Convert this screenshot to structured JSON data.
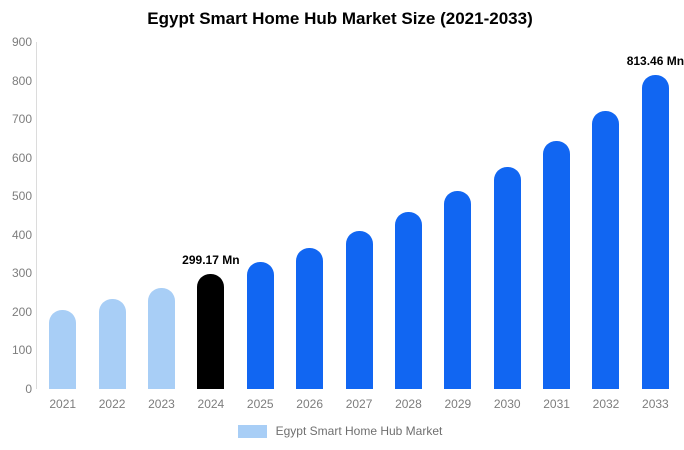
{
  "chart_data": {
    "type": "bar",
    "title": "Egypt Smart Home Hub Market Size (2021-2033)",
    "categories": [
      "2021",
      "2022",
      "2023",
      "2024",
      "2025",
      "2026",
      "2027",
      "2028",
      "2029",
      "2030",
      "2031",
      "2032",
      "2033"
    ],
    "values": [
      205,
      233,
      262,
      299.17,
      330,
      367,
      410,
      458,
      513,
      575,
      643,
      722,
      813.46
    ],
    "value_unit": "Mn",
    "bar_value_labels": [
      "",
      "",
      "",
      "299.17 Mn",
      "",
      "",
      "",
      "",
      "",
      "",
      "",
      "",
      "813.46 Mn"
    ],
    "bar_colors": [
      "#A8CEF6",
      "#A8CEF6",
      "#A8CEF6",
      "#000000",
      "#1166F2",
      "#1166F2",
      "#1166F2",
      "#1166F2",
      "#1166F2",
      "#1166F2",
      "#1166F2",
      "#1166F2",
      "#1166F2"
    ],
    "ylim": [
      0,
      900
    ],
    "ytick_step": 100,
    "grid": false,
    "legend": {
      "position": "bottom",
      "label": "Egypt Smart Home Hub Market",
      "swatch_color": "#A8CEF6"
    }
  }
}
